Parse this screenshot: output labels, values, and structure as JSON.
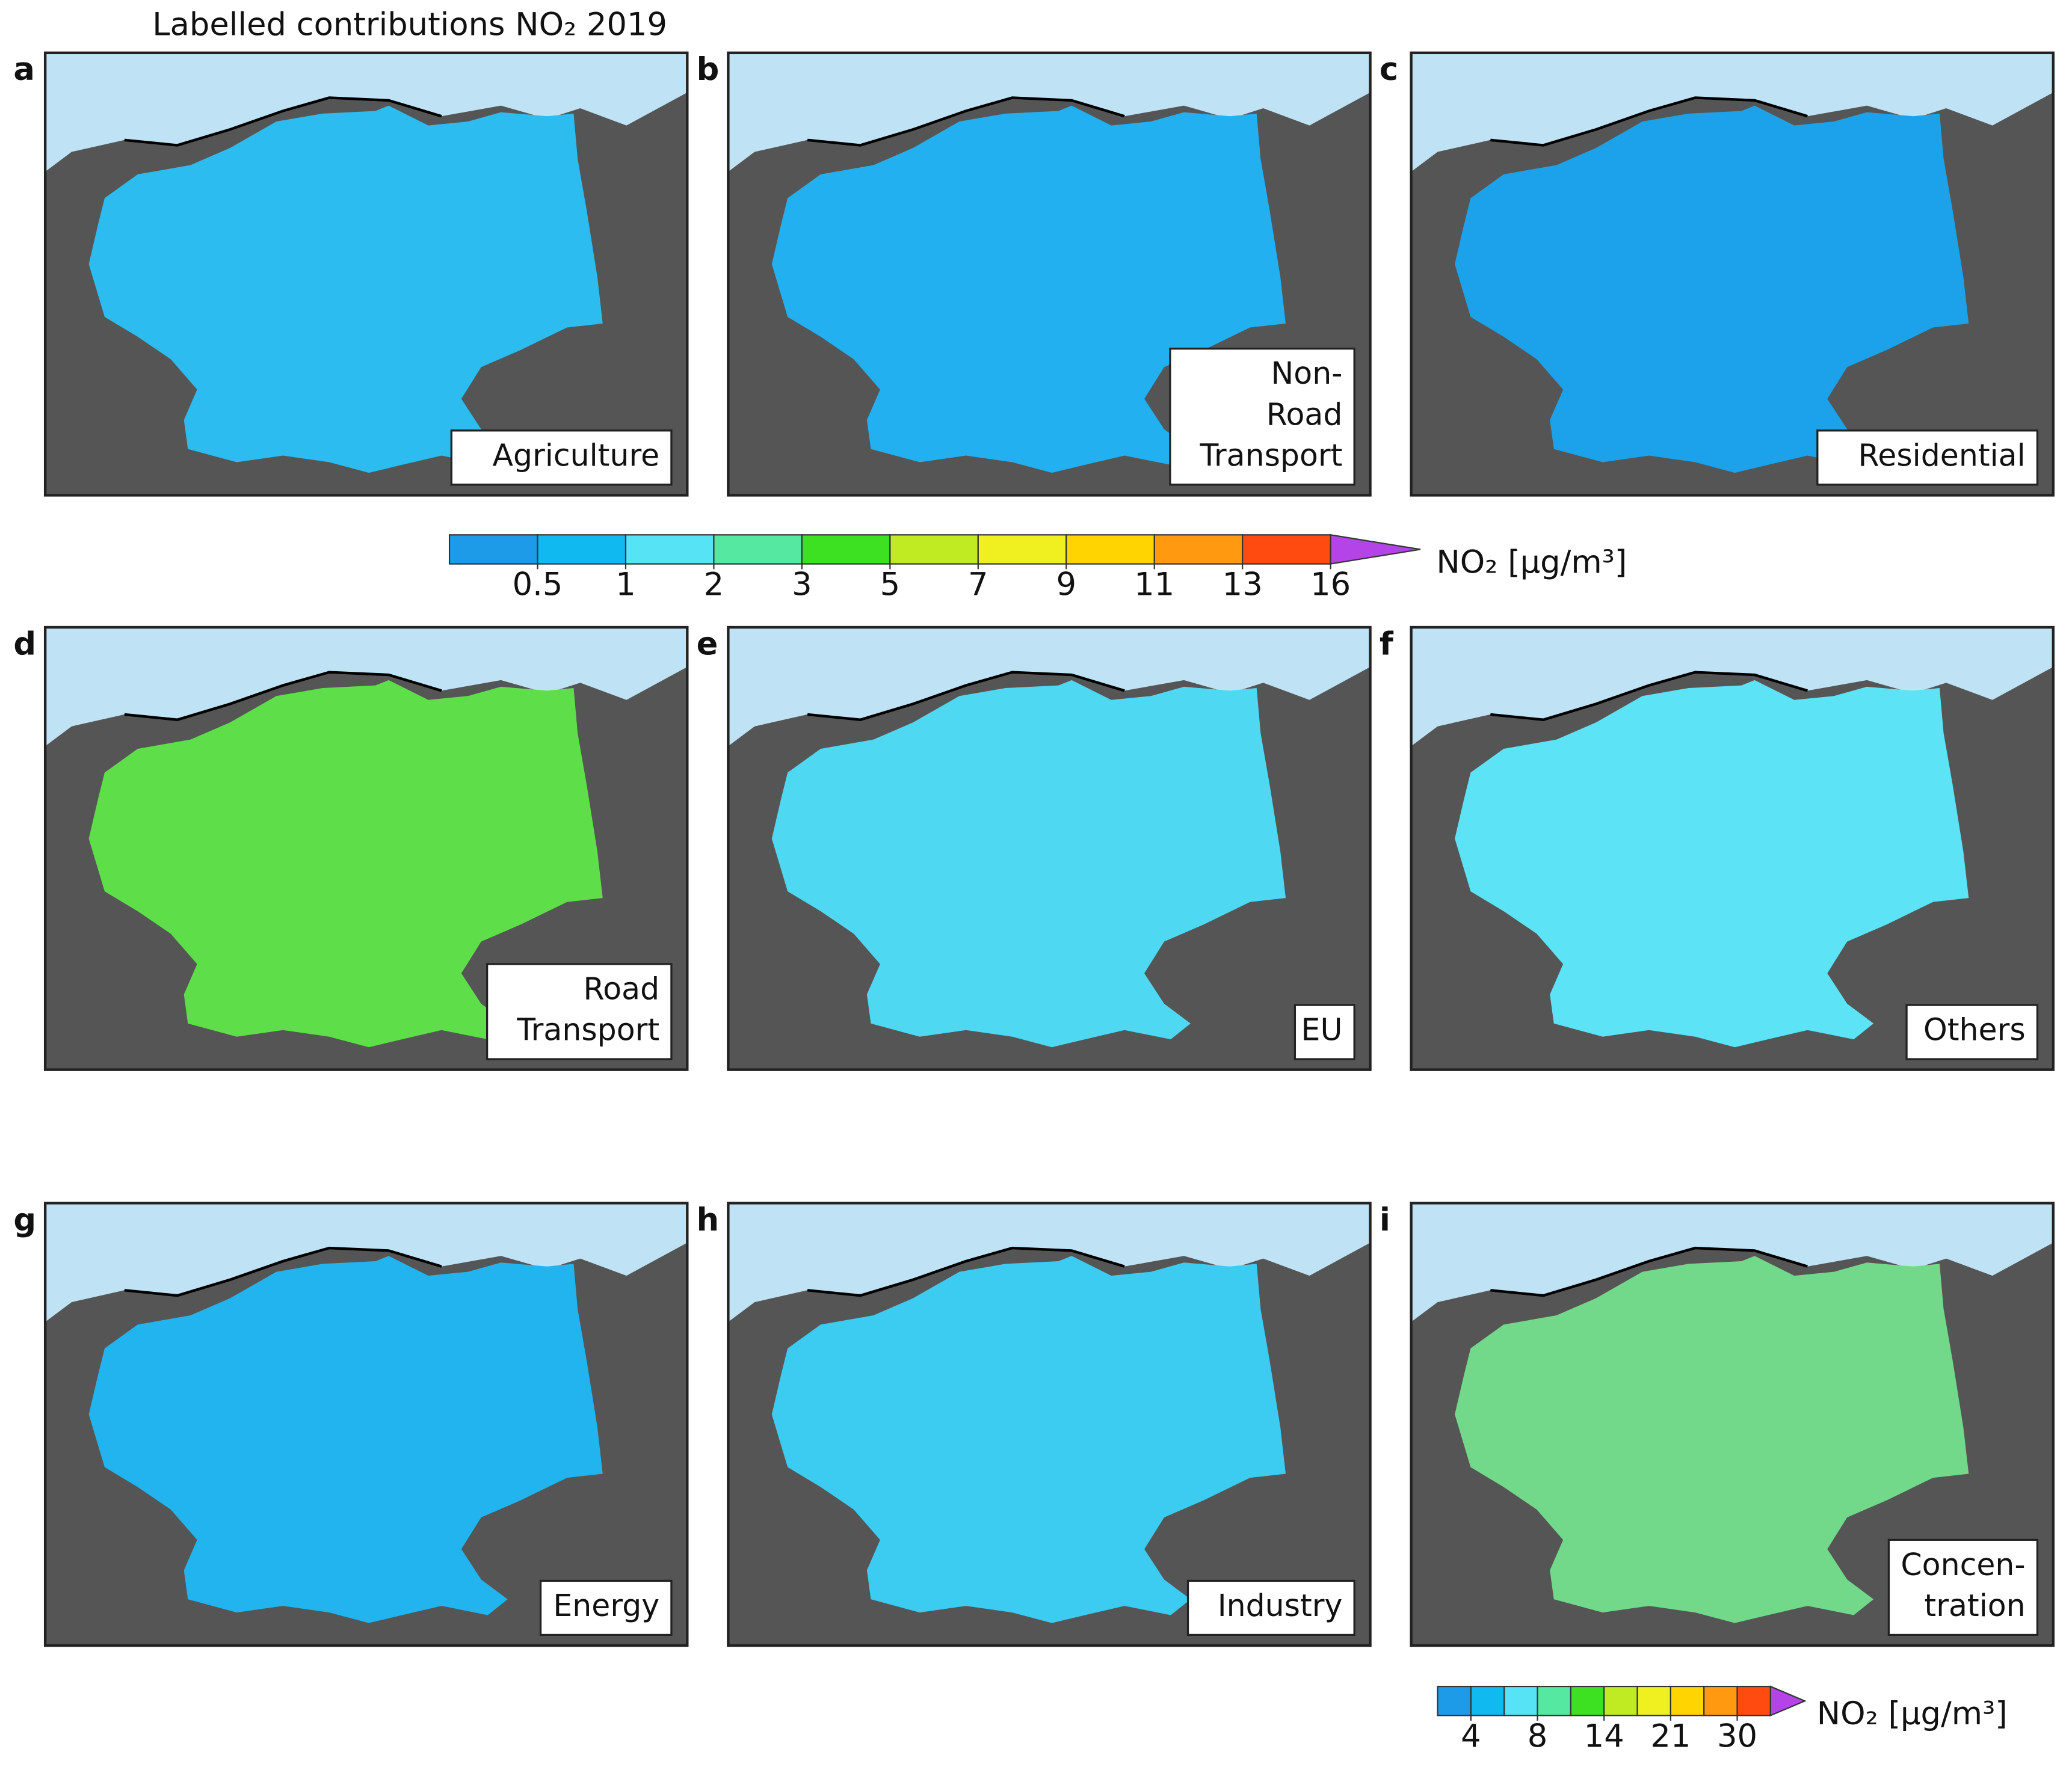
{
  "title": "Labelled contributions NO₂ 2019",
  "panels": [
    {
      "letter": "a",
      "label": [
        "Agriculture"
      ],
      "color": "#2cbcef"
    },
    {
      "letter": "b",
      "label": [
        "Non-",
        "Road",
        "Transport"
      ],
      "color": "#22b0f0"
    },
    {
      "letter": "c",
      "label": [
        "Residential"
      ],
      "color": "#1ca2ea"
    },
    {
      "letter": "d",
      "label": [
        "Road",
        "Transport"
      ],
      "color": "#5edf4a"
    },
    {
      "letter": "e",
      "label": [
        "EU"
      ],
      "color": "#4fd8f2"
    },
    {
      "letter": "f",
      "label": [
        "Others"
      ],
      "color": "#5ce3f5"
    },
    {
      "letter": "g",
      "label": [
        "Energy"
      ],
      "color": "#22b4ee"
    },
    {
      "letter": "h",
      "label": [
        "Industry"
      ],
      "color": "#3cccf2"
    },
    {
      "letter": "i",
      "label": [
        "Concen-",
        "tration"
      ],
      "color": "#72d98a"
    }
  ],
  "colorbars": [
    {
      "colors": [
        "#1e9be8",
        "#10b9f0",
        "#55e3f5",
        "#55e8a0",
        "#3ee022",
        "#c0ea22",
        "#f0f020",
        "#ffd400",
        "#ff9a10",
        "#ff4a10"
      ],
      "extend_color": "#b444e8",
      "ticks": [
        0.5,
        1,
        2,
        3,
        5,
        7,
        9,
        11,
        13,
        16
      ],
      "label": "NO₂ [µg/m³]"
    },
    {
      "colors": [
        "#1e9be8",
        "#10b9f0",
        "#55e3f5",
        "#55e8a0",
        "#3ee022",
        "#c0ea22",
        "#f0f020",
        "#ffd400",
        "#ff9a10",
        "#ff4a10"
      ],
      "extend_color": "#b444e8",
      "ticks": [
        4,
        8,
        14,
        21,
        30
      ],
      "label": "NO₂ [µg/m³]"
    }
  ]
}
